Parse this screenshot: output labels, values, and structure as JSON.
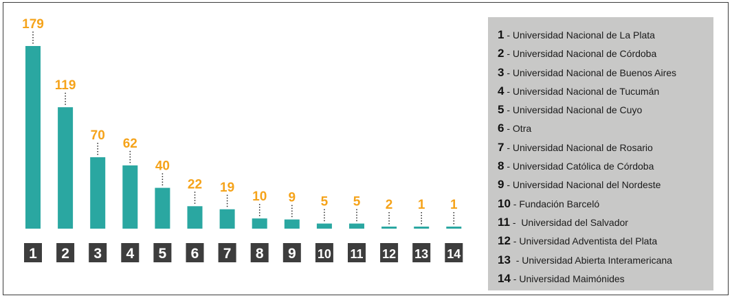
{
  "chart_data": {
    "type": "bar",
    "categories": [
      "1",
      "2",
      "3",
      "4",
      "5",
      "6",
      "7",
      "8",
      "9",
      "10",
      "11",
      "12",
      "13",
      "14"
    ],
    "values": [
      179,
      119,
      70,
      62,
      40,
      22,
      19,
      10,
      9,
      5,
      5,
      2,
      1,
      1
    ],
    "ylim": [
      0,
      179
    ],
    "grid": false,
    "legend": {
      "position": "right",
      "entries": [
        {
          "num": "1",
          "sep": " - ",
          "label": "Universidad Nacional de La Plata"
        },
        {
          "num": "2",
          "sep": " - ",
          "label": "Universidad Nacional de Córdoba"
        },
        {
          "num": "3",
          "sep": " - ",
          "label": "Universidad Nacional de Buenos Aires"
        },
        {
          "num": "4",
          "sep": " - ",
          "label": "Universidad Nacional de Tucumán"
        },
        {
          "num": "5",
          "sep": " - ",
          "label": "Universidad Nacional de Cuyo"
        },
        {
          "num": "6",
          "sep": " - ",
          "label": "Otra"
        },
        {
          "num": "7",
          "sep": " - ",
          "label": "Universidad Nacional de Rosario"
        },
        {
          "num": "8",
          "sep": " - ",
          "label": "Universidad Católica de Córdoba"
        },
        {
          "num": "9",
          "sep": " - ",
          "label": "Universidad Nacional del Nordeste"
        },
        {
          "num": "10",
          "sep": " - ",
          "label": "Fundación Barceló"
        },
        {
          "num": "11",
          "sep": " -  ",
          "label": "Universidad del Salvador"
        },
        {
          "num": "12",
          "sep": " - ",
          "label": "Universidad Adventista del Plata"
        },
        {
          "num": "13",
          "sep": "  - ",
          "label": "Universidad Abierta Interamericana"
        },
        {
          "num": "14",
          "sep": " - ",
          "label": "Universidad Maimónides"
        }
      ]
    }
  },
  "colors": {
    "bar": "#2aa7a1",
    "value_label": "#f5a31a",
    "category_box": "#3d3d3d",
    "category_text": "#ffffff",
    "legend_bg": "#c8c8c7",
    "frame": "#3a3a3a"
  }
}
